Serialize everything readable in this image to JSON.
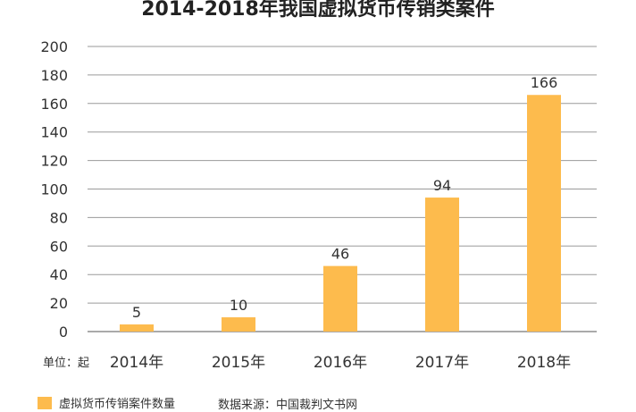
{
  "chart_data": {
    "type": "bar",
    "title": "2014-2018年我国虚拟货币传销类案件",
    "categories": [
      "2014年",
      "2015年",
      "2016年",
      "2017年",
      "2018年"
    ],
    "series": [
      {
        "name": "虚拟货币传销案件数量",
        "values": [
          5,
          10,
          46,
          94,
          166
        ]
      }
    ],
    "ylim": [
      0,
      200
    ],
    "yticks": [
      0,
      20,
      40,
      60,
      80,
      100,
      120,
      140,
      160,
      180,
      200
    ],
    "grid": true,
    "bar_color": "#FDBB4D",
    "legend_position": "bottom-left",
    "unit_label": "单位：起",
    "source": "数据来源：中国裁判文书网"
  }
}
